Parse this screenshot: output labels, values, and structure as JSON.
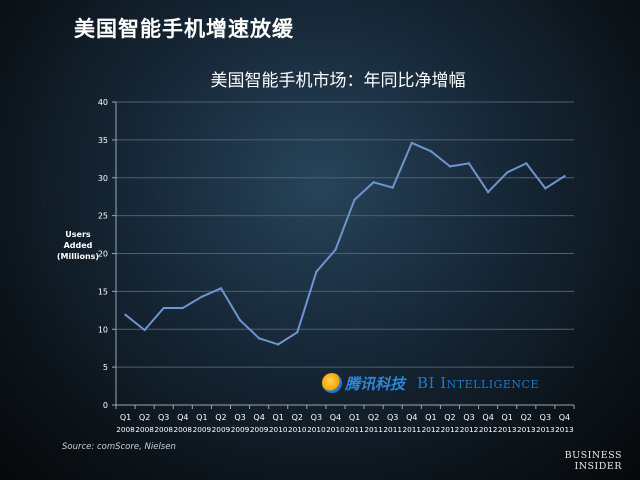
{
  "slide": {
    "title": "美国智能手机增速放缓",
    "source": "Source: comScore, Nielsen",
    "brand_line1": "BUSINESS",
    "brand_line2": "INSIDER",
    "watermark_tencent": "腾讯科技",
    "watermark_bi": "BI Intelligence"
  },
  "colors": {
    "line": "#6f95cf",
    "grid": "#4e6070",
    "axis": "#9aa6b0",
    "text": "#ffffff"
  },
  "chart_data": {
    "type": "line",
    "title": "美国智能手机市场：年同比净增幅",
    "ylabel_lines": [
      "Users",
      "Added",
      "(Millions)"
    ],
    "xlabel": "",
    "ylim": [
      0,
      40
    ],
    "yticks": [
      0,
      5,
      10,
      15,
      20,
      25,
      30,
      35,
      40
    ],
    "grid": true,
    "legend": "none",
    "categories": [
      {
        "q": "Q1",
        "y": "2008"
      },
      {
        "q": "Q2",
        "y": "2008"
      },
      {
        "q": "Q3",
        "y": "2008"
      },
      {
        "q": "Q4",
        "y": "2008"
      },
      {
        "q": "Q1",
        "y": "2009"
      },
      {
        "q": "Q2",
        "y": "2009"
      },
      {
        "q": "Q3",
        "y": "2009"
      },
      {
        "q": "Q4",
        "y": "2009"
      },
      {
        "q": "Q1",
        "y": "2010"
      },
      {
        "q": "Q2",
        "y": "2010"
      },
      {
        "q": "Q3",
        "y": "2010"
      },
      {
        "q": "Q4",
        "y": "2010"
      },
      {
        "q": "Q1",
        "y": "2011"
      },
      {
        "q": "Q2",
        "y": "2011"
      },
      {
        "q": "Q3",
        "y": "2011"
      },
      {
        "q": "Q4",
        "y": "2011"
      },
      {
        "q": "Q1",
        "y": "2012"
      },
      {
        "q": "Q2",
        "y": "2012"
      },
      {
        "q": "Q3",
        "y": "2012"
      },
      {
        "q": "Q4",
        "y": "2012"
      },
      {
        "q": "Q1",
        "y": "2013"
      },
      {
        "q": "Q2",
        "y": "2013"
      },
      {
        "q": "Q3",
        "y": "2013"
      },
      {
        "q": "Q4",
        "y": "2013"
      }
    ],
    "series": [
      {
        "values": [
          11.9,
          9.9,
          12.8,
          12.8,
          14.3,
          15.4,
          11.2,
          8.8,
          8.0,
          9.6,
          17.6,
          20.5,
          27.1,
          29.4,
          28.7,
          34.6,
          33.5,
          31.5,
          31.9,
          28.1,
          30.7,
          31.9,
          28.6,
          30.2
        ]
      }
    ]
  }
}
